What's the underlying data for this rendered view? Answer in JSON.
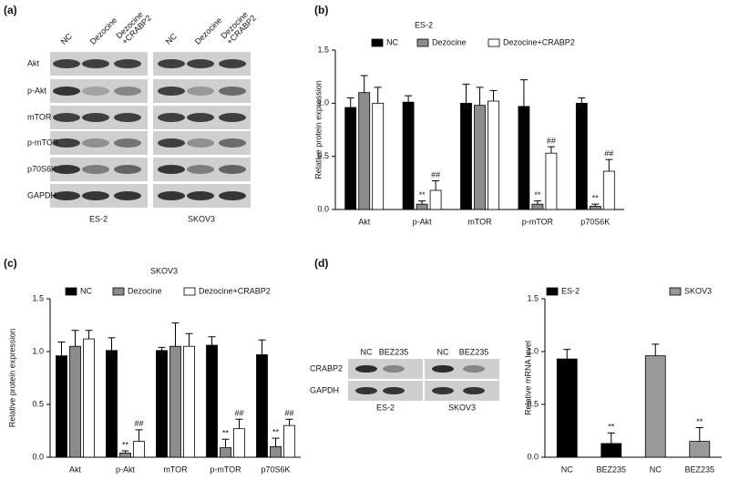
{
  "panel_labels": [
    "(a)",
    "(b)",
    "(c)",
    "(d)"
  ],
  "blot_a": {
    "lanes": [
      [
        "NC"
      ],
      [
        "Dezocine"
      ],
      [
        "Dezocine",
        "+CRABP2"
      ]
    ],
    "proteins": [
      "Akt",
      "p-Akt",
      "mTOR",
      "p-mTOR",
      "p70S6K",
      "GAPDH"
    ],
    "cell_lines": [
      "ES-2",
      "SKOV3"
    ]
  },
  "blot_d": {
    "lanes": [
      "NC",
      "BEZ235"
    ],
    "proteins": [
      "CRABP2",
      "GAPDH"
    ],
    "cell_lines": [
      "ES-2",
      "SKOV3"
    ]
  },
  "chart_data": [
    {
      "type": "bar",
      "title": "ES-2",
      "y_label": "Relative protein expression",
      "categories": [
        "Akt",
        "p-Akt",
        "mTOR",
        "p-mTOR",
        "p70S6K"
      ],
      "series": [
        {
          "name": "NC",
          "color": "#000000",
          "values": [
            0.96,
            1.01,
            1.0,
            0.97,
            1.0
          ],
          "errors": [
            0.09,
            0.06,
            0.18,
            0.25,
            0.05
          ],
          "annotations": [
            null,
            null,
            null,
            null,
            null
          ]
        },
        {
          "name": "Dezocine",
          "color": "#8c8c8c",
          "values": [
            1.1,
            0.05,
            0.98,
            0.05,
            0.03
          ],
          "errors": [
            0.16,
            0.03,
            0.17,
            0.03,
            0.02
          ],
          "annotations": [
            null,
            "**",
            null,
            "**",
            "**"
          ]
        },
        {
          "name": "Dezocine+CRABP2",
          "color": "#ffffff",
          "values": [
            1.0,
            0.18,
            1.02,
            0.53,
            0.36
          ],
          "errors": [
            0.15,
            0.09,
            0.1,
            0.06,
            0.11
          ],
          "annotations": [
            null,
            "##",
            null,
            "##",
            "##"
          ]
        }
      ],
      "ylim": [
        0,
        1.5
      ],
      "yticks": [
        {
          "value": 0,
          "label": "0.0"
        },
        0.5,
        {
          "value": 1,
          "label": "1.0"
        },
        1.5
      ]
    },
    {
      "type": "bar",
      "title": "SKOV3",
      "y_label": "Relative protein expression",
      "categories": [
        "Akt",
        "p-Akt",
        "mTOR",
        "p-mTOR",
        "p70S6K"
      ],
      "series": [
        {
          "name": "NC",
          "color": "#000000",
          "values": [
            0.96,
            1.01,
            1.01,
            1.06,
            0.97
          ],
          "errors": [
            0.13,
            0.12,
            0.03,
            0.08,
            0.14
          ],
          "annotations": [
            null,
            null,
            null,
            null,
            null
          ]
        },
        {
          "name": "Dezocine",
          "color": "#8c8c8c",
          "values": [
            1.05,
            0.04,
            1.05,
            0.09,
            0.1
          ],
          "errors": [
            0.15,
            0.02,
            0.22,
            0.08,
            0.08
          ],
          "annotations": [
            null,
            "**",
            null,
            "**",
            "**"
          ]
        },
        {
          "name": "Dezocine+CRABP2",
          "color": "#ffffff",
          "values": [
            1.12,
            0.15,
            1.05,
            0.27,
            0.3
          ],
          "errors": [
            0.08,
            0.11,
            0.12,
            0.09,
            0.06
          ],
          "annotations": [
            null,
            "##",
            null,
            "##",
            "##"
          ]
        }
      ],
      "ylim": [
        0,
        1.5
      ],
      "yticks": [
        {
          "value": 0,
          "label": "0.0"
        },
        0.5,
        {
          "value": 1,
          "label": "1.0"
        },
        1.5
      ]
    },
    {
      "type": "bar",
      "y_label": "Relative mRNA level",
      "categories": [
        "NC",
        "BEZ235",
        "NC",
        "BEZ235"
      ],
      "series": [
        {
          "name": "ES-2",
          "color": "#000000",
          "values": [
            0.93,
            0.13,
            null,
            null
          ],
          "errors": [
            0.09,
            0.1,
            null,
            null
          ],
          "annotations": [
            null,
            "**",
            null,
            null
          ]
        },
        {
          "name": "SKOV3",
          "color": "#999999",
          "values": [
            null,
            null,
            0.96,
            0.15
          ],
          "errors": [
            null,
            null,
            0.11,
            0.13
          ],
          "annotations": [
            null,
            null,
            null,
            "**"
          ]
        }
      ],
      "ylim": [
        0,
        1.5
      ],
      "yticks": [
        {
          "value": 0,
          "label": "0.0"
        },
        0.5,
        {
          "value": 1,
          "label": "1.0"
        },
        1.5
      ]
    }
  ]
}
